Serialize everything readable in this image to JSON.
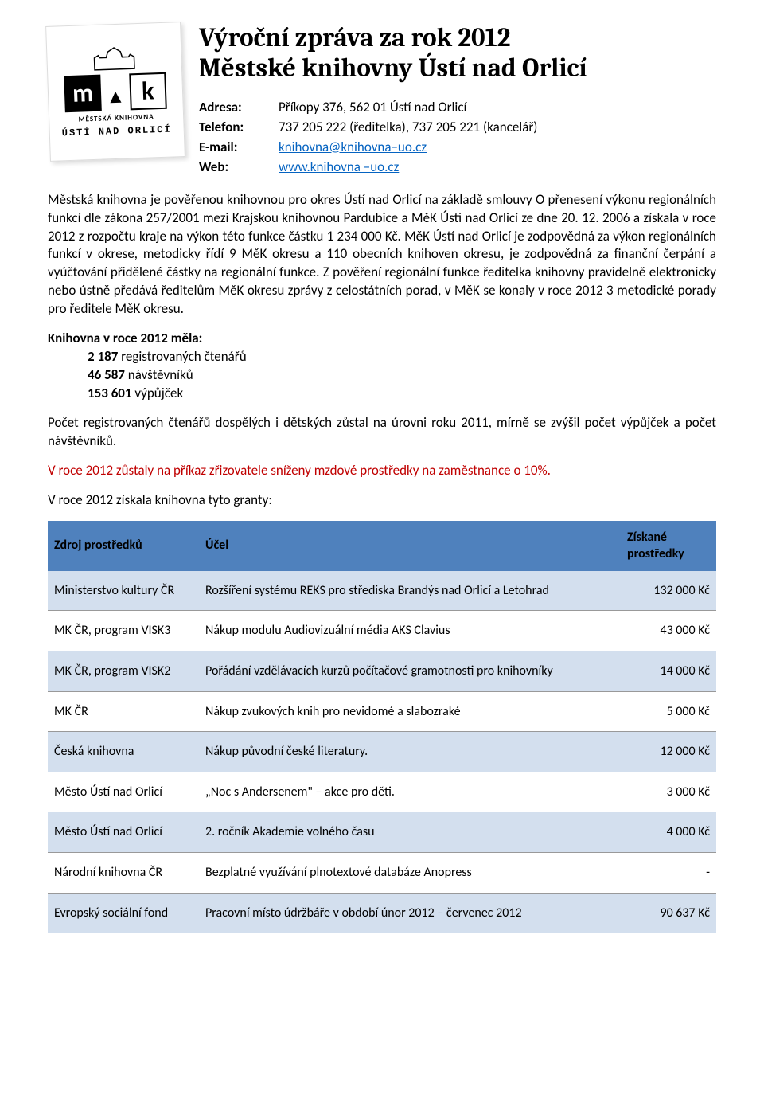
{
  "title_line1": "Výroční zpráva za rok 2012",
  "title_line2": "Městské knihovny Ústí nad Orlicí",
  "logo": {
    "m": "m",
    "k": "k",
    "mid": "MĚSTSKÁ  KNIHOVNA",
    "bot": "ÚSTÍ NAD ORLICÍ"
  },
  "contact": {
    "labels": {
      "adresa": "Adresa:",
      "telefon": "Telefon:",
      "email": "E-mail:",
      "web": "Web:"
    },
    "adresa": "Příkopy 376, 562 01 Ústí nad Orlicí",
    "telefon": "737 205 222 (ředitelka), 737 205 221 (kancelář)",
    "email": "knihovna@knihovna–uo.cz",
    "web": "www.knihovna –uo.cz"
  },
  "para1": "Městská knihovna je pověřenou knihovnou pro okres Ústí nad Orlicí na základě smlouvy O přenesení výkonu regionálních funkcí dle zákona 257/2001 mezi Krajskou knihovnou Pardubice a MěK Ústí nad Orlicí ze dne 20. 12. 2006 a získala v roce 2012 z rozpočtu kraje na výkon této funkce částku 1 234 000 Kč. MěK Ústí nad Orlicí je zodpovědná za výkon regionálních funkcí v okrese, metodicky řídí 9 MěK okresu a 110 obecních knihoven okresu, je zodpovědná za finanční čerpání a vyúčtování přidělené částky na regionální funkce. Z pověření regionální funkce ředitelka knihovny pravidelně elektronicky nebo ústně předává ředitelům MěK okresu zprávy z celostátních porad, v MěK se konaly v roce 2012 3 metodické porady pro ředitele MěK okresu.",
  "stats": {
    "head": "Knihovna v roce 2012 měla:",
    "r1_bold": "2 187",
    "r1_rest": " registrovaných čtenářů",
    "r2_bold": "46 587",
    "r2_rest": " návštěvníků",
    "r3_bold": "153 601",
    "r3_rest": " výpůjček"
  },
  "para2": "Počet registrovaných čtenářů dospělých i dětských zůstal na úrovni roku 2011, mírně se zvýšil počet výpůjček a počet návštěvníků.",
  "para3": "V roce 2012 zůstaly na příkaz zřizovatele sníženy mzdové prostředky na zaměstnance o 10%.",
  "para4": "V roce 2012 získala knihovna tyto granty:",
  "table": {
    "headers": [
      "Zdroj prostředků",
      "Účel",
      "Získané prostředky"
    ],
    "header_bg": "#4f81bd",
    "alt_bg": "#d3dfee",
    "rows": [
      {
        "alt": true,
        "c1": "Ministerstvo kultury ČR",
        "c2": "Rozšíření systému REKS pro střediska Brandýs nad Orlicí a Letohrad",
        "c3": "132 000 Kč"
      },
      {
        "alt": false,
        "c1": "MK ČR, program VISK3",
        "c2": "Nákup modulu Audiovizuální média AKS Clavius",
        "c3": "43 000 Kč"
      },
      {
        "alt": true,
        "c1": "MK ČR, program VISK2",
        "c2": "Pořádání vzdělávacích kurzů počítačové gramotnosti pro knihovníky",
        "c3": "14 000 Kč"
      },
      {
        "alt": false,
        "c1": "MK ČR",
        "c2": "Nákup zvukových knih pro nevidomé a slabozraké",
        "c3": "5 000 Kč"
      },
      {
        "alt": true,
        "c1": "Česká knihovna",
        "c2": "Nákup původní české literatury.",
        "c3": "12 000 Kč"
      },
      {
        "alt": false,
        "c1": "Město Ústí nad Orlicí",
        "c2": "„Noc s Andersenem\" – akce pro děti.",
        "c3": "3 000 Kč"
      },
      {
        "alt": true,
        "c1": "Město Ústí nad Orlicí",
        "c2": "2. ročník Akademie volného času",
        "c3": "4 000 Kč"
      },
      {
        "alt": false,
        "c1": "Národní knihovna ČR",
        "c2": "Bezplatné využívání plnotextové databáze Anopress",
        "c3": "-"
      },
      {
        "alt": true,
        "c1": "Evropský sociální fond",
        "c2": "Pracovní místo údržbáře v období únor 2012 – červenec 2012",
        "c3": "90 637 Kč"
      }
    ]
  }
}
